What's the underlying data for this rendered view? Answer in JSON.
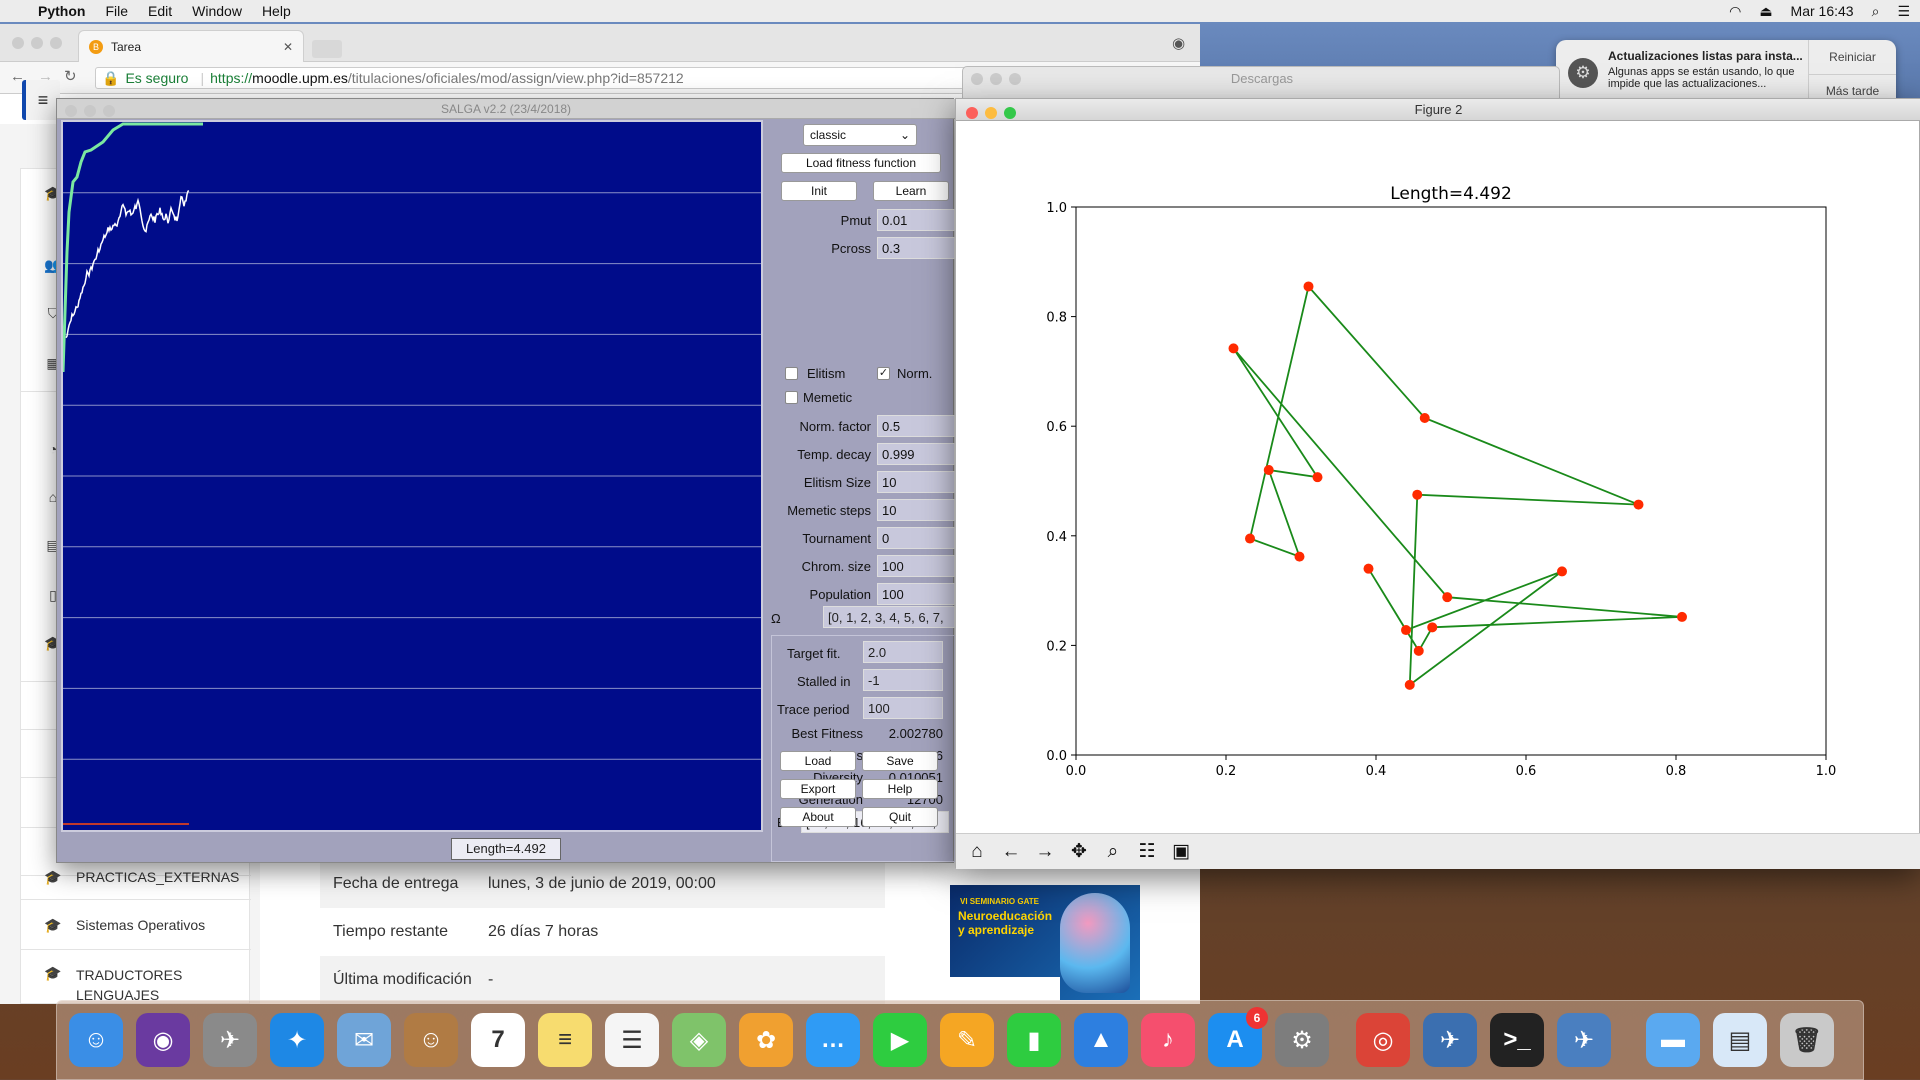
{
  "menubar": {
    "app": "Python",
    "items": [
      "File",
      "Edit",
      "Window",
      "Help"
    ],
    "clock": "Mar 16:43"
  },
  "notification": {
    "title": "Actualizaciones listas para insta...",
    "body": "Algunas apps se están usando, lo que impide que las actualizaciones...",
    "btn_restart": "Reiniciar",
    "btn_later": "Más tarde"
  },
  "browser": {
    "tab_title": "Tarea",
    "tab_favicon": "B",
    "secure": "Es seguro",
    "url_scheme": "https://",
    "url_host": "moodle.upm.es",
    "url_path": "/titulaciones/oficiales/mod/assign/view.php?id=857212"
  },
  "moodle": {
    "courses": [
      "PRACTICAS_EXTERNAS",
      "Sistemas Operativos",
      "TRADUCTORES LENGUAJES"
    ],
    "rows": [
      {
        "k": "Fecha de entrega",
        "v": "lunes, 3 de junio de 2019, 00:00"
      },
      {
        "k": "Tiempo restante",
        "v": "26 días 7 horas"
      },
      {
        "k": "Última modificación",
        "v": "-"
      }
    ],
    "ad_line1": "VI SEMINARIO GATE",
    "ad_line2": "Neuroeducación y aprendizaje"
  },
  "downloads": {
    "title": "Descargas"
  },
  "salga": {
    "title": "SALGA v2.2 (23/4/2018)",
    "mode": "classic",
    "load_fitness": "Load fitness function",
    "init": "Init",
    "learn": "Learn",
    "params": [
      {
        "label": "Pmut",
        "value": "0.01"
      },
      {
        "label": "Pcross",
        "value": "0.3"
      }
    ],
    "elitism_label": "Elitism",
    "norm_label": "Norm.",
    "memetic_label": "Memetic",
    "elitism_checked": false,
    "norm_checked": true,
    "memetic_checked": false,
    "params2": [
      {
        "label": "Norm. factor",
        "value": "0.5"
      },
      {
        "label": "Temp. decay",
        "value": "0.999"
      },
      {
        "label": "Elitism Size",
        "value": "10"
      },
      {
        "label": "Memetic steps",
        "value": "10"
      },
      {
        "label": "Tournament",
        "value": "0"
      },
      {
        "label": "Chrom. size",
        "value": "100"
      },
      {
        "label": "Population",
        "value": "100"
      }
    ],
    "omega_label": "Ω",
    "omega_value": "[0, 1, 2, 3, 4, 5, 6, 7,",
    "target_fit_label": "Target fit.",
    "target_fit": "2.0",
    "stalled_label": "Stalled in",
    "stalled": "-1",
    "trace_label": "Trace period",
    "trace": "100",
    "stats": [
      {
        "label": "Best Fitness",
        "value": "2.002780"
      },
      {
        "label": "Mean Fitness",
        "value": "1.785176"
      },
      {
        "label": "Diversity",
        "value": "0.010051"
      },
      {
        "label": "Generation",
        "value": "12700"
      }
    ],
    "bst_label": "Bst",
    "bst_value": "[16, 16, 16, 16, 16, 16,",
    "buttons": [
      "Load",
      "Save",
      "Export",
      "Help",
      "About",
      "Quit"
    ],
    "status": "Length=4.492",
    "colors": {
      "background": "#000c8a",
      "best_line": "#7be8a0",
      "mean_line": "#ffffff"
    }
  },
  "figure": {
    "window_title": "Figure 2",
    "chart_data": {
      "type": "line",
      "title": "Length=4.492",
      "xlim": [
        0,
        1
      ],
      "ylim": [
        0,
        1
      ],
      "xticks": [
        "0.0",
        "0.2",
        "0.4",
        "0.6",
        "0.8",
        "1.0"
      ],
      "yticks": [
        "0.0",
        "0.2",
        "0.4",
        "0.6",
        "0.8",
        "1.0"
      ],
      "line_color": "#1a8a1a",
      "marker_color": "#ff2a00",
      "grid": false,
      "points": [
        [
          0.31,
          0.855
        ],
        [
          0.465,
          0.615
        ],
        [
          0.75,
          0.457
        ],
        [
          0.455,
          0.475
        ],
        [
          0.445,
          0.128
        ],
        [
          0.648,
          0.335
        ],
        [
          0.44,
          0.228
        ],
        [
          0.39,
          0.34
        ],
        [
          0.457,
          0.19
        ],
        [
          0.475,
          0.233
        ],
        [
          0.808,
          0.252
        ],
        [
          0.495,
          0.288
        ],
        [
          0.21,
          0.742
        ],
        [
          0.322,
          0.507
        ],
        [
          0.257,
          0.52
        ],
        [
          0.298,
          0.362
        ],
        [
          0.232,
          0.395
        ]
      ]
    }
  },
  "dock": {
    "apps": [
      {
        "name": "finder-icon",
        "color": "#3a8ee6",
        "glyph": "☺"
      },
      {
        "name": "siri-icon",
        "color": "#6a3aa0",
        "glyph": "◉"
      },
      {
        "name": "launchpad-icon",
        "color": "#8a8a8a",
        "glyph": "✈"
      },
      {
        "name": "safari-icon",
        "color": "#1e88e5",
        "glyph": "✦"
      },
      {
        "name": "mail-icon",
        "color": "#6fa4d8",
        "glyph": "✉"
      },
      {
        "name": "contacts-icon",
        "color": "#b07b44",
        "glyph": "☺"
      },
      {
        "name": "calendar-icon",
        "color": "#ffffff",
        "glyph": "7"
      },
      {
        "name": "notes-icon",
        "color": "#f7dc6f",
        "glyph": "≡"
      },
      {
        "name": "reminders-icon",
        "color": "#f5f5f5",
        "glyph": "☰"
      },
      {
        "name": "maps-icon",
        "color": "#7fc36a",
        "glyph": "◈"
      },
      {
        "name": "photos-icon",
        "color": "#f0a030",
        "glyph": "✿"
      },
      {
        "name": "messages-icon",
        "color": "#2f9bf5",
        "glyph": "…"
      },
      {
        "name": "facetime-icon",
        "color": "#2ecc40",
        "glyph": "▶"
      },
      {
        "name": "pages-icon",
        "color": "#f5a623",
        "glyph": "✎"
      },
      {
        "name": "numbers-icon",
        "color": "#2ecc40",
        "glyph": "▮"
      },
      {
        "name": "keynote-icon",
        "color": "#2d7fe0",
        "glyph": "▲"
      },
      {
        "name": "music-icon",
        "color": "#f54f6e",
        "glyph": "♪"
      },
      {
        "name": "app-store-icon",
        "color": "#1c8ef0",
        "glyph": "A",
        "badge": "6"
      },
      {
        "name": "system-preferences-icon",
        "color": "#7d7d7d",
        "glyph": "⚙"
      },
      {
        "name": "chrome-icon",
        "color": "#db4437",
        "glyph": "◎"
      },
      {
        "name": "python-launcher-icon",
        "color": "#3b6fb0",
        "glyph": "✈"
      },
      {
        "name": "terminal-icon",
        "color": "#222222",
        "glyph": ">_"
      },
      {
        "name": "python-icon",
        "color": "#4a7fc0",
        "glyph": "✈"
      },
      {
        "name": "downloads-folder-icon",
        "color": "#5aa9f0",
        "glyph": "▬"
      },
      {
        "name": "preview-icon",
        "color": "#d8e8f8",
        "glyph": "▤"
      },
      {
        "name": "trash-icon",
        "color": "#c9c9c9",
        "glyph": "🗑"
      }
    ]
  }
}
